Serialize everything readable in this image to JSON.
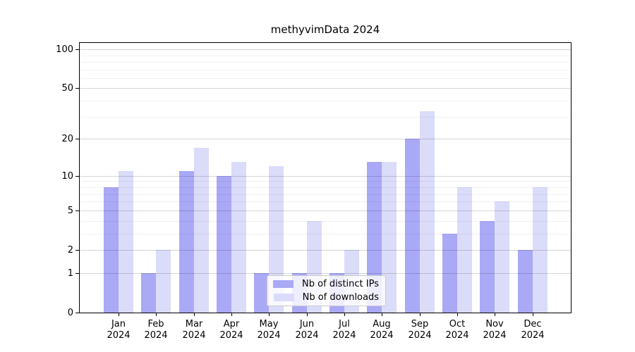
{
  "figure": {
    "title": "methyvimData 2024"
  },
  "chart_data": {
    "type": "bar",
    "title": "methyvimData 2024",
    "xlabel": "",
    "ylabel": "",
    "year_label": "2024",
    "categories": [
      "Jan 2024",
      "Feb 2024",
      "Mar 2024",
      "Apr 2024",
      "May 2024",
      "Jun 2024",
      "Jul 2024",
      "Aug 2024",
      "Sep 2024",
      "Oct 2024",
      "Nov 2024",
      "Dec 2024"
    ],
    "month_labels": [
      "Jan",
      "Feb",
      "Mar",
      "Apr",
      "May",
      "Jun",
      "Jul",
      "Aug",
      "Sep",
      "Oct",
      "Nov",
      "Dec"
    ],
    "series": [
      {
        "name": "Nb of distinct IPs",
        "color": "#a9a9f6",
        "values": [
          8,
          1,
          11,
          10,
          1,
          1,
          1,
          13,
          20,
          3,
          4,
          2
        ]
      },
      {
        "name": "Nb of downloads",
        "color": "#dbdbfa",
        "values": [
          11,
          2,
          17,
          13,
          12,
          4,
          2,
          13,
          33,
          8,
          6,
          8
        ]
      }
    ],
    "y_scale": "log1p",
    "ylim": [
      0,
      112
    ],
    "y_major_ticks": [
      0,
      1,
      2,
      5,
      10,
      20,
      50,
      100
    ],
    "y_minor_gridlines": [
      3,
      4,
      6,
      7,
      8,
      9,
      30,
      40,
      60,
      70,
      80,
      90
    ],
    "grid": "horizontal, drawn above bars",
    "legend_position": "inside lower-center"
  }
}
